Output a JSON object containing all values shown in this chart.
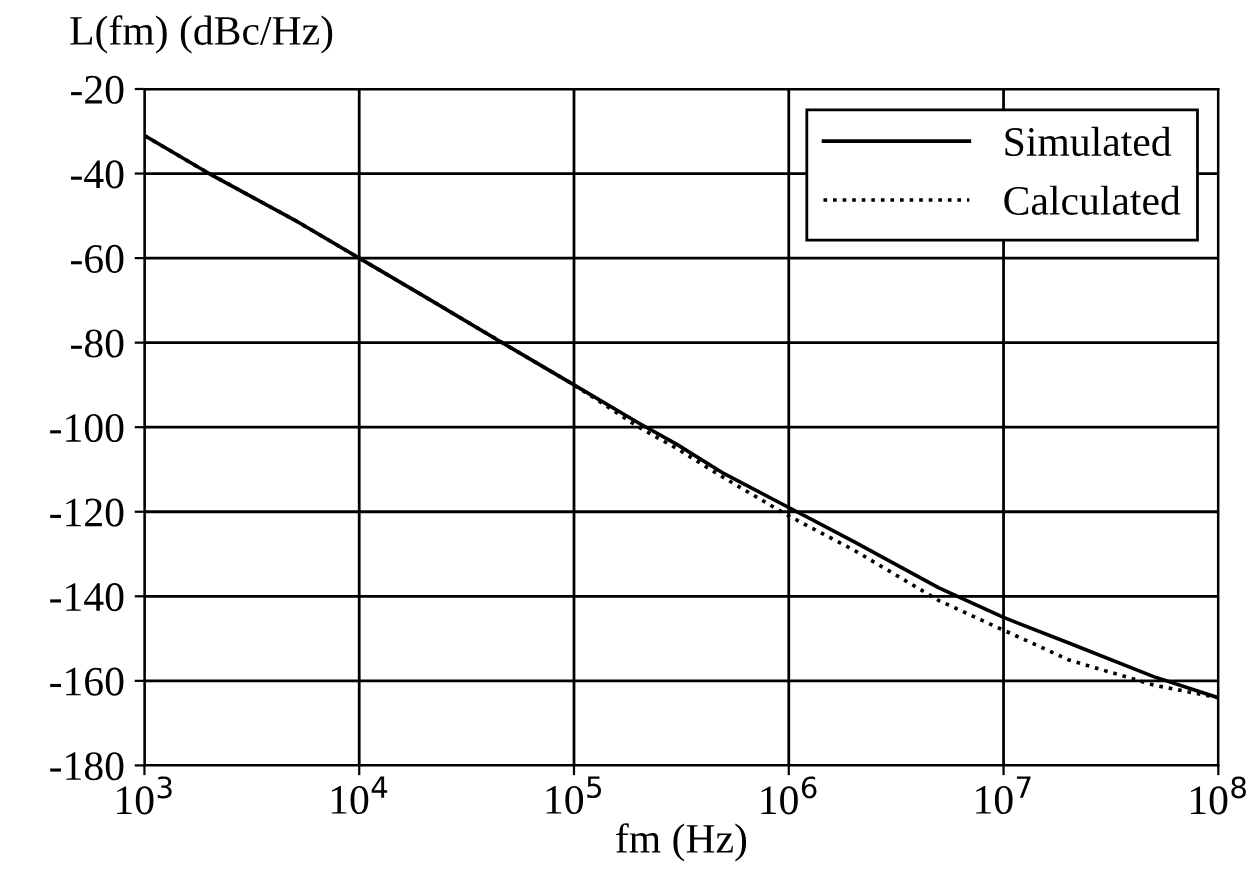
{
  "chart_data": {
    "type": "line",
    "ylabel": "L(fm) (dBc/Hz)",
    "xlabel": "fm (Hz)",
    "log": "x",
    "xlim": [
      1000,
      100000000
    ],
    "ylim": [
      -180,
      -20
    ],
    "xticks": [
      {
        "value": 1000,
        "label": "10$^{3}$"
      },
      {
        "value": 10000,
        "label": "10$^{4}$"
      },
      {
        "value": 100000,
        "label": "10$^{5}$"
      },
      {
        "value": 1000000,
        "label": "10$^{6}$"
      },
      {
        "value": 10000000,
        "label": "10$^{7}$"
      },
      {
        "value": 100000000,
        "label": "10$^{8}$"
      }
    ],
    "yticks": [
      -20,
      -40,
      -60,
      -80,
      -100,
      -120,
      -140,
      -160,
      -180
    ],
    "grid": true,
    "legend": "top right",
    "series": [
      {
        "name": "Simulated",
        "color": "#000000",
        "line_style": "solid",
        "x": [
          1000,
          2000,
          5000,
          10000,
          20000,
          50000,
          100000,
          200000,
          300000,
          500000,
          1000000,
          2000000,
          5000000,
          10000000,
          20000000,
          50000000,
          100000000
        ],
        "values": [
          -31,
          -40,
          -51,
          -60,
          -69,
          -81,
          -90,
          -99,
          -104,
          -111,
          -119,
          -127,
          -138,
          -145,
          -151,
          -159,
          -164
        ]
      },
      {
        "name": "Calculated",
        "color": "#000000",
        "line_style": "dotted",
        "x": [
          1000,
          2000,
          5000,
          10000,
          20000,
          50000,
          100000,
          200000,
          300000,
          500000,
          1000000,
          2000000,
          5000000,
          10000000,
          20000000,
          50000000,
          100000000
        ],
        "values": [
          -31,
          -40,
          -51,
          -60,
          -69,
          -81,
          -90,
          -100,
          -105,
          -112,
          -121,
          -129,
          -141,
          -148,
          -155,
          -161,
          -164
        ]
      }
    ]
  }
}
